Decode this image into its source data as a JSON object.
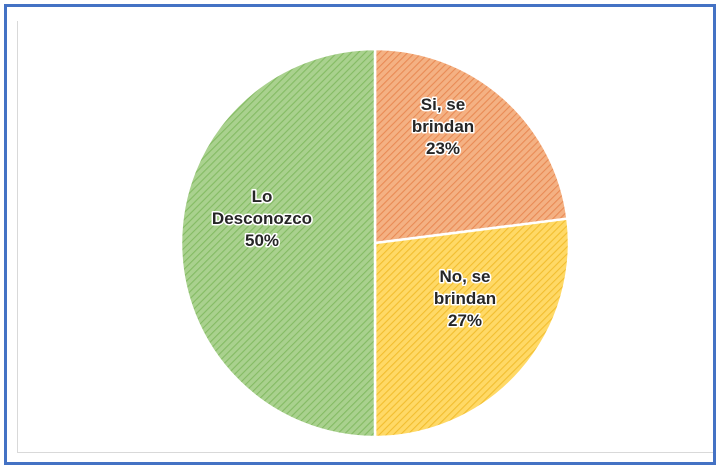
{
  "chart_data": {
    "type": "pie",
    "categories": [
      "Si, se brindan",
      "No, se brindan",
      "Lo Desconozco"
    ],
    "values": [
      23,
      27,
      50
    ],
    "labels": [
      [
        "Si, se",
        "brindan",
        "23%"
      ],
      [
        "No, se",
        "brindan",
        "27%"
      ],
      [
        "Lo",
        "Desconozco",
        "50%"
      ]
    ],
    "colors": [
      "#F4B183",
      "#FFD966",
      "#A9D18E"
    ],
    "hatch_colors": [
      "#E98A54",
      "#F2BE2F",
      "#84BB63"
    ],
    "start_angle_deg": 0,
    "direction": "clockwise"
  }
}
